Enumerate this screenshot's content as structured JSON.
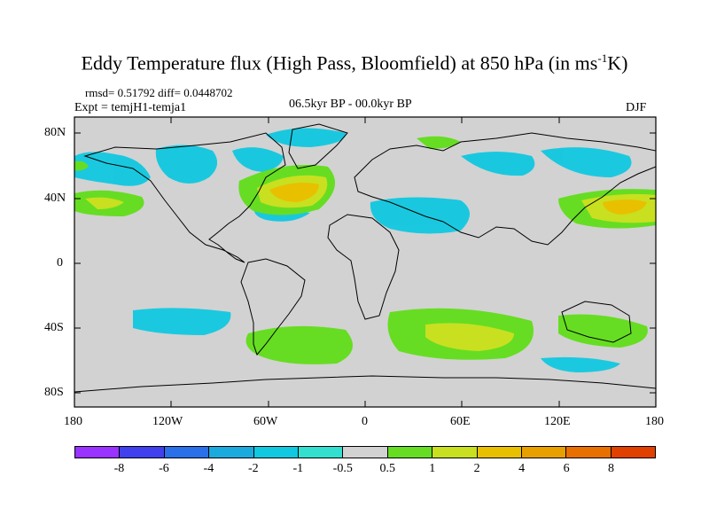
{
  "title": {
    "main": "Eddy Temperature flux (High Pass, Bloomfield) at 850 hPa (in ms",
    "sup": "-1",
    "end": "K)"
  },
  "stats": "rmsd= 0.51792  diff= 0.0448702",
  "expt": "Expt = temjH1-temja1",
  "period": "06.5kyr BP - 00.0kyr BP",
  "season": "DJF",
  "y_ticks": [
    "80N",
    "40N",
    "0",
    "40S",
    "80S"
  ],
  "x_ticks": [
    "180",
    "120W",
    "60W",
    "0",
    "60E",
    "120E",
    "180"
  ],
  "colorbar": {
    "colors": [
      "#9933ff",
      "#4040ee",
      "#2a70e8",
      "#1aaadd",
      "#10c8e0",
      "#33e0d0",
      "#d2d2d2",
      "#66dd22",
      "#c8e020",
      "#e8c000",
      "#e8a000",
      "#e87000",
      "#e04000"
    ],
    "labels": [
      "-8",
      "-6",
      "-4",
      "-2",
      "-1",
      "-0.5",
      "0.5",
      "1",
      "2",
      "4",
      "6",
      "8"
    ]
  },
  "map": {
    "background": "#d2d2d2"
  }
}
